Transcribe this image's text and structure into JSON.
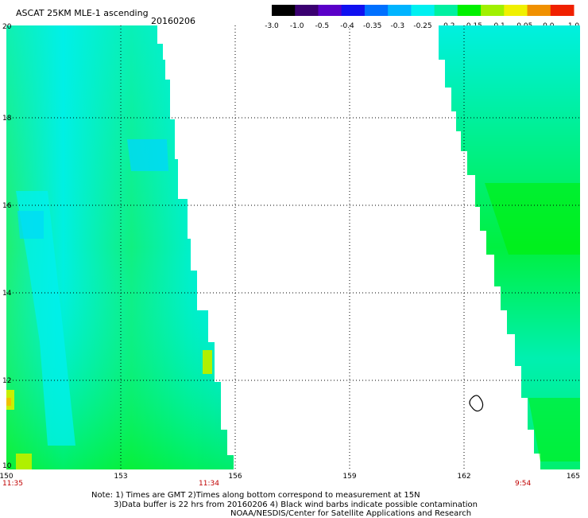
{
  "header": {
    "title": "ASCAT 25KM MLE-1 ascending",
    "date": "20160206"
  },
  "colorbar": {
    "labels": [
      "-3.0",
      "-1.0",
      "-0.5",
      "-0.4",
      "-0.35",
      "-0.3",
      "-0.25",
      "-0.2",
      "-0.15",
      "-0.1",
      "-0.05",
      "0.0",
      "1.0"
    ],
    "colors": [
      "#000000",
      "#3a0070",
      "#5a00c8",
      "#1010f0",
      "#0070ff",
      "#00b4ff",
      "#00f0f0",
      "#00f0a0",
      "#00f000",
      "#a0f000",
      "#f0f000",
      "#f09000",
      "#f02000"
    ]
  },
  "map": {
    "x_ticks": [
      "150",
      "153",
      "156",
      "159",
      "162",
      "165"
    ],
    "y_ticks": [
      "10",
      "12",
      "14",
      "16",
      "18",
      "20"
    ],
    "times": [
      "11:35",
      "11:34",
      "9:54"
    ],
    "colors": {
      "cyan": "#00f0f0",
      "teal": "#00f0c0",
      "green": "#00f070",
      "bright_green": "#00f000",
      "time": "#c00000"
    }
  },
  "notes": {
    "line1": "Note: 1) Times are GMT 2)Times along bottom correspond to measurement at 15N",
    "line2": "3)Data buffer is 22 hrs from 20160206 4) Black wind barbs indicate possible contamination",
    "line3": "NOAA/NESDIS/Center for Satellite Applications and Research"
  }
}
